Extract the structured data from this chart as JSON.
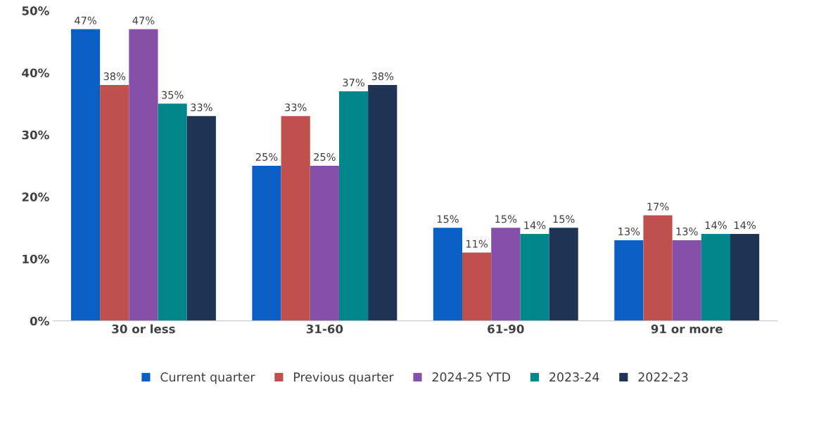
{
  "chart_data": {
    "type": "bar",
    "categories": [
      "30 or less",
      "31-60",
      "61-90",
      "91 or more"
    ],
    "series": [
      {
        "name": "Current quarter",
        "color": "#0a5fc4",
        "values": [
          47,
          25,
          15,
          13
        ],
        "value_labels": [
          "47%",
          "25%",
          "15%",
          "13%"
        ]
      },
      {
        "name": "Previous quarter",
        "color": "#c0504d",
        "values": [
          38,
          33,
          11,
          17
        ],
        "value_labels": [
          "38%",
          "33%",
          "11%",
          "17%"
        ]
      },
      {
        "name": "2024-25 YTD",
        "color": "#8650a8",
        "values": [
          47,
          25,
          15,
          13
        ],
        "value_labels": [
          "47%",
          "25%",
          "15%",
          "13%"
        ]
      },
      {
        "name": "2023-24",
        "color": "#00868b",
        "values": [
          35,
          37,
          14,
          14
        ],
        "value_labels": [
          "35%",
          "37%",
          "14%",
          "14%"
        ]
      },
      {
        "name": "2022-23",
        "color": "#1f3455",
        "values": [
          33,
          38,
          15,
          14
        ],
        "value_labels": [
          "33%",
          "38%",
          "15%",
          "14%"
        ]
      }
    ],
    "ylim": [
      0,
      50
    ],
    "yticks": [
      {
        "value": 0,
        "label": "0%"
      },
      {
        "value": 10,
        "label": "10%"
      },
      {
        "value": 20,
        "label": "20%"
      },
      {
        "value": 30,
        "label": "30%"
      },
      {
        "value": 40,
        "label": "40%"
      },
      {
        "value": 50,
        "label": "50%"
      }
    ],
    "grid": false,
    "legend": "bottom"
  }
}
